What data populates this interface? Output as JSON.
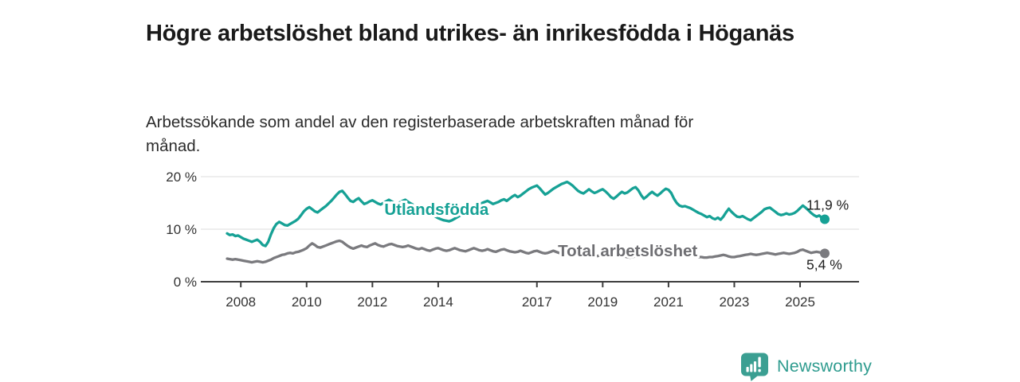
{
  "header": {
    "title": "Högre arbetslöshet bland utrikes- än inrikesfödda i Höganäs",
    "subtitle": "Arbetssökande som andel av den registerbaserade arbetskraften månad för månad."
  },
  "chart_data": {
    "type": "line",
    "x_unit": "month",
    "x_start": "2007-08",
    "x_end": "2025-10",
    "ylim": [
      0,
      20
    ],
    "grid": "horizontal-only",
    "legend_position": "inline-labels-on-lines",
    "y_ticks": [
      {
        "value": 0,
        "label": "0 %"
      },
      {
        "value": 10,
        "label": "10 %"
      },
      {
        "value": 20,
        "label": "20 %"
      }
    ],
    "x_ticks": [
      {
        "year": 2008,
        "label": "2008"
      },
      {
        "year": 2010,
        "label": "2010"
      },
      {
        "year": 2012,
        "label": "2012"
      },
      {
        "year": 2014,
        "label": "2014"
      },
      {
        "year": 2017,
        "label": "2017"
      },
      {
        "year": 2019,
        "label": "2019"
      },
      {
        "year": 2021,
        "label": "2021"
      },
      {
        "year": 2023,
        "label": "2023"
      },
      {
        "year": 2025,
        "label": "2025"
      }
    ],
    "series": [
      {
        "name": "Utlandsfödda",
        "color": "#16a195",
        "label_color": "#16a195",
        "end_label": "11,9 %",
        "end_label_side": "above",
        "label_x_year": 2013.95,
        "label_y_value": 13.8,
        "values": [
          9.2,
          8.9,
          9.0,
          8.7,
          8.8,
          8.5,
          8.2,
          8.0,
          7.8,
          7.6,
          7.8,
          8.0,
          7.6,
          7.0,
          6.8,
          7.6,
          9.0,
          10.2,
          11.0,
          11.4,
          11.1,
          10.8,
          10.7,
          11.0,
          11.3,
          11.6,
          12.0,
          12.7,
          13.4,
          13.9,
          14.2,
          13.8,
          13.4,
          13.2,
          13.6,
          14.0,
          14.4,
          14.9,
          15.4,
          16.0,
          16.6,
          17.1,
          17.3,
          16.7,
          16.0,
          15.4,
          15.2,
          15.6,
          15.9,
          15.3,
          14.8,
          15.0,
          15.3,
          15.5,
          15.2,
          14.9,
          14.7,
          15.0,
          15.3,
          15.6,
          15.3,
          15.0,
          14.8,
          15.1,
          15.4,
          15.6,
          15.2,
          14.9,
          14.6,
          14.3,
          14.1,
          14.4,
          14.0,
          13.6,
          13.2,
          12.8,
          12.4,
          12.1,
          11.9,
          11.7,
          11.6,
          11.5,
          11.7,
          12.0,
          12.3,
          12.6,
          13.0,
          13.3,
          13.6,
          13.9,
          14.2,
          14.5,
          14.7,
          15.0,
          15.2,
          15.4,
          15.1,
          14.8,
          15.0,
          15.2,
          15.5,
          15.7,
          15.4,
          15.8,
          16.2,
          16.5,
          16.1,
          16.4,
          16.8,
          17.2,
          17.6,
          17.9,
          18.1,
          18.3,
          17.8,
          17.2,
          16.6,
          16.9,
          17.3,
          17.7,
          18.0,
          18.3,
          18.6,
          18.8,
          19.0,
          18.7,
          18.3,
          17.8,
          17.3,
          17.0,
          16.8,
          17.2,
          17.6,
          17.2,
          16.9,
          17.1,
          17.4,
          17.6,
          17.2,
          16.7,
          16.1,
          15.8,
          16.2,
          16.7,
          17.1,
          16.8,
          17.0,
          17.4,
          17.8,
          18.0,
          17.4,
          16.5,
          15.8,
          16.2,
          16.7,
          17.1,
          16.7,
          16.4,
          16.8,
          17.3,
          17.7,
          17.5,
          16.9,
          15.8,
          15.0,
          14.5,
          14.3,
          14.4,
          14.2,
          14.0,
          13.7,
          13.4,
          13.1,
          12.9,
          12.6,
          12.3,
          12.5,
          12.1,
          11.9,
          12.2,
          11.8,
          12.4,
          13.2,
          13.9,
          13.3,
          12.8,
          12.4,
          12.3,
          12.5,
          12.2,
          11.9,
          11.7,
          12.1,
          12.5,
          12.9,
          13.3,
          13.8,
          14.0,
          14.1,
          13.7,
          13.3,
          12.9,
          12.7,
          12.8,
          13.0,
          12.8,
          12.9,
          13.1,
          13.5,
          14.0,
          14.5,
          14.1,
          13.6,
          13.1,
          12.7,
          12.4,
          12.6,
          12.1,
          11.9
        ]
      },
      {
        "name": "Total arbetslöshet",
        "color": "#7a7a7e",
        "label_color": "#6e6e72",
        "end_label": "5,4 %",
        "end_label_side": "below",
        "label_x_year": 2019.76,
        "label_y_value": 5.9,
        "values": [
          4.4,
          4.3,
          4.2,
          4.3,
          4.2,
          4.1,
          4.0,
          3.9,
          3.8,
          3.7,
          3.8,
          3.9,
          3.8,
          3.7,
          3.8,
          4.0,
          4.2,
          4.5,
          4.7,
          4.9,
          5.1,
          5.2,
          5.4,
          5.5,
          5.4,
          5.6,
          5.7,
          5.9,
          6.1,
          6.4,
          6.9,
          7.3,
          7.0,
          6.6,
          6.5,
          6.7,
          6.9,
          7.1,
          7.3,
          7.5,
          7.7,
          7.8,
          7.6,
          7.2,
          6.8,
          6.5,
          6.3,
          6.5,
          6.7,
          6.9,
          6.7,
          6.6,
          6.9,
          7.1,
          7.3,
          7.0,
          6.8,
          6.7,
          6.9,
          7.1,
          7.2,
          7.0,
          6.8,
          6.7,
          6.6,
          6.7,
          6.9,
          6.7,
          6.5,
          6.3,
          6.2,
          6.4,
          6.2,
          6.0,
          5.9,
          6.1,
          6.3,
          6.4,
          6.2,
          6.0,
          5.9,
          6.0,
          6.2,
          6.4,
          6.2,
          6.0,
          5.9,
          5.8,
          6.0,
          6.2,
          6.4,
          6.2,
          6.0,
          5.9,
          6.0,
          6.2,
          6.0,
          5.8,
          5.7,
          5.9,
          6.1,
          6.2,
          6.0,
          5.8,
          5.7,
          5.6,
          5.7,
          5.9,
          5.7,
          5.5,
          5.4,
          5.6,
          5.8,
          5.9,
          5.7,
          5.5,
          5.4,
          5.5,
          5.7,
          5.9,
          5.7,
          5.5,
          5.4,
          5.3,
          5.4,
          5.5,
          5.4,
          5.3,
          5.2,
          5.1,
          5.2,
          5.3,
          5.2,
          5.1,
          5.0,
          4.9,
          5.0,
          5.1,
          5.0,
          4.9,
          4.8,
          4.7,
          4.8,
          5.0,
          4.9,
          4.8,
          4.7,
          4.6,
          4.7,
          4.9,
          5.1,
          5.4,
          5.7,
          5.9,
          6.1,
          6.2,
          6.1,
          6.0,
          5.9,
          5.8,
          5.9,
          6.0,
          5.9,
          5.7,
          5.5,
          5.3,
          5.2,
          5.3,
          5.2,
          5.0,
          4.9,
          4.8,
          4.7,
          4.7,
          4.6,
          4.6,
          4.7,
          4.7,
          4.8,
          4.9,
          5.0,
          5.1,
          5.0,
          4.8,
          4.7,
          4.7,
          4.8,
          4.9,
          5.0,
          5.1,
          5.2,
          5.3,
          5.2,
          5.1,
          5.2,
          5.3,
          5.4,
          5.5,
          5.4,
          5.3,
          5.2,
          5.3,
          5.4,
          5.5,
          5.4,
          5.3,
          5.4,
          5.5,
          5.7,
          6.0,
          6.1,
          5.9,
          5.7,
          5.5,
          5.6,
          5.7,
          5.6,
          5.5,
          5.4
        ]
      }
    ],
    "colors": {
      "axis": "#3d3d3d",
      "gridline": "#dcdcdc",
      "tick_label": "#333333",
      "end_label_text": "#1f1f1f"
    }
  },
  "footer": {
    "brand": "Newsworthy",
    "logo_icon": "bar-chart-speech-bubble-icon",
    "logo_color": "#3b9f92"
  }
}
